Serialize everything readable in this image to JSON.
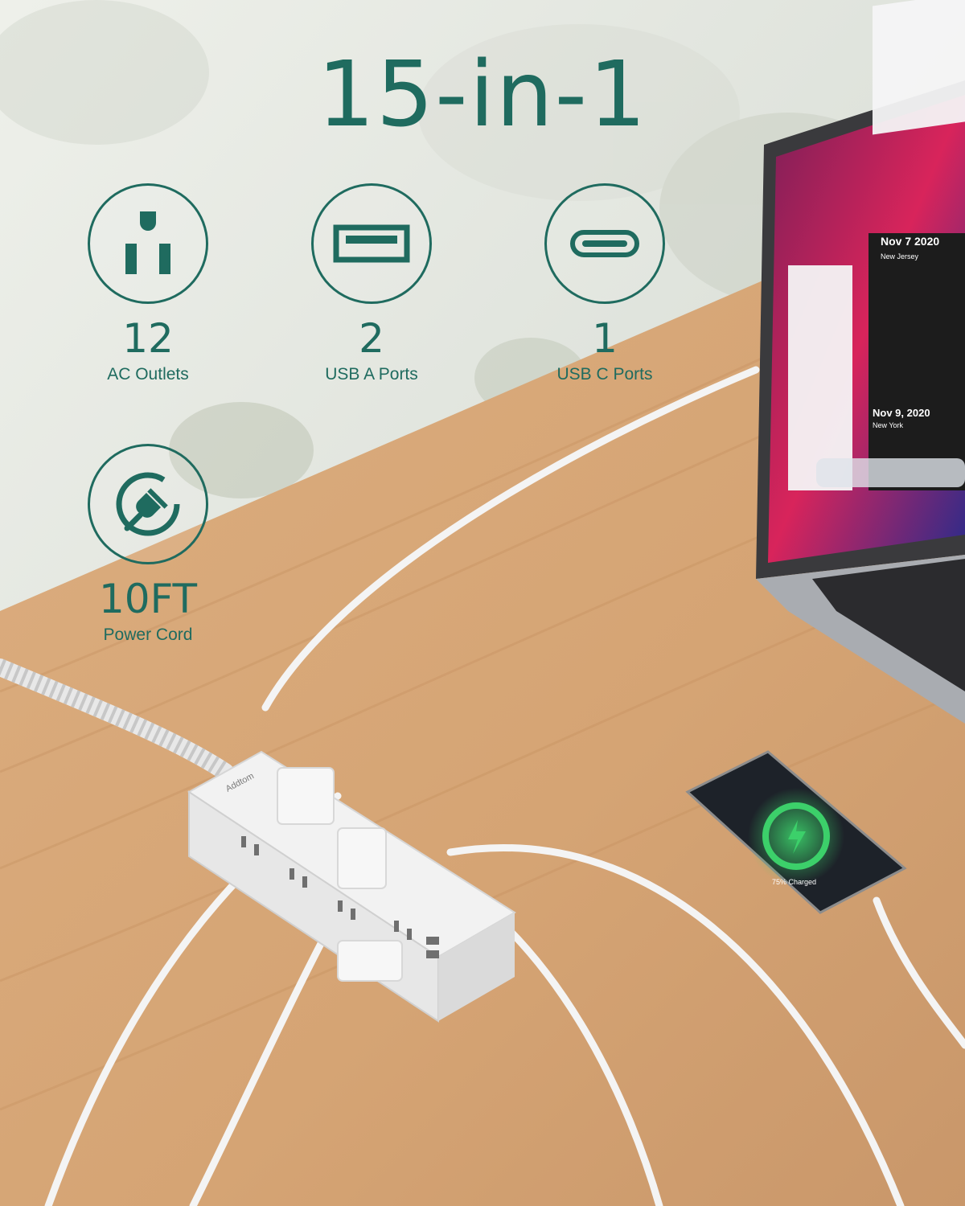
{
  "headline": "15-in-1",
  "colors": {
    "accent": "#1f6b5f",
    "desk_wood": "#d7a878",
    "wall_blur": "#dfe3dc"
  },
  "features": [
    {
      "icon": "ac-outlet-icon",
      "count": "12",
      "label": "AC Outlets"
    },
    {
      "icon": "usb-a-port-icon",
      "count": "2",
      "label": "USB A Ports"
    },
    {
      "icon": "usb-c-port-icon",
      "count": "1",
      "label": "USB C Ports"
    },
    {
      "icon": "power-plug-icon",
      "count": "10FT",
      "label": "Power Cord"
    }
  ],
  "laptop_screen": {
    "photo_caption_1": "Nov 7 2020",
    "photo_location_1": "New Jersey",
    "photo_caption_2": "Nov 9, 2020",
    "photo_location_2": "New York"
  },
  "phone_screen": {
    "charge_status": "75% Charged"
  },
  "power_strip": {
    "brand": "Addtom"
  }
}
